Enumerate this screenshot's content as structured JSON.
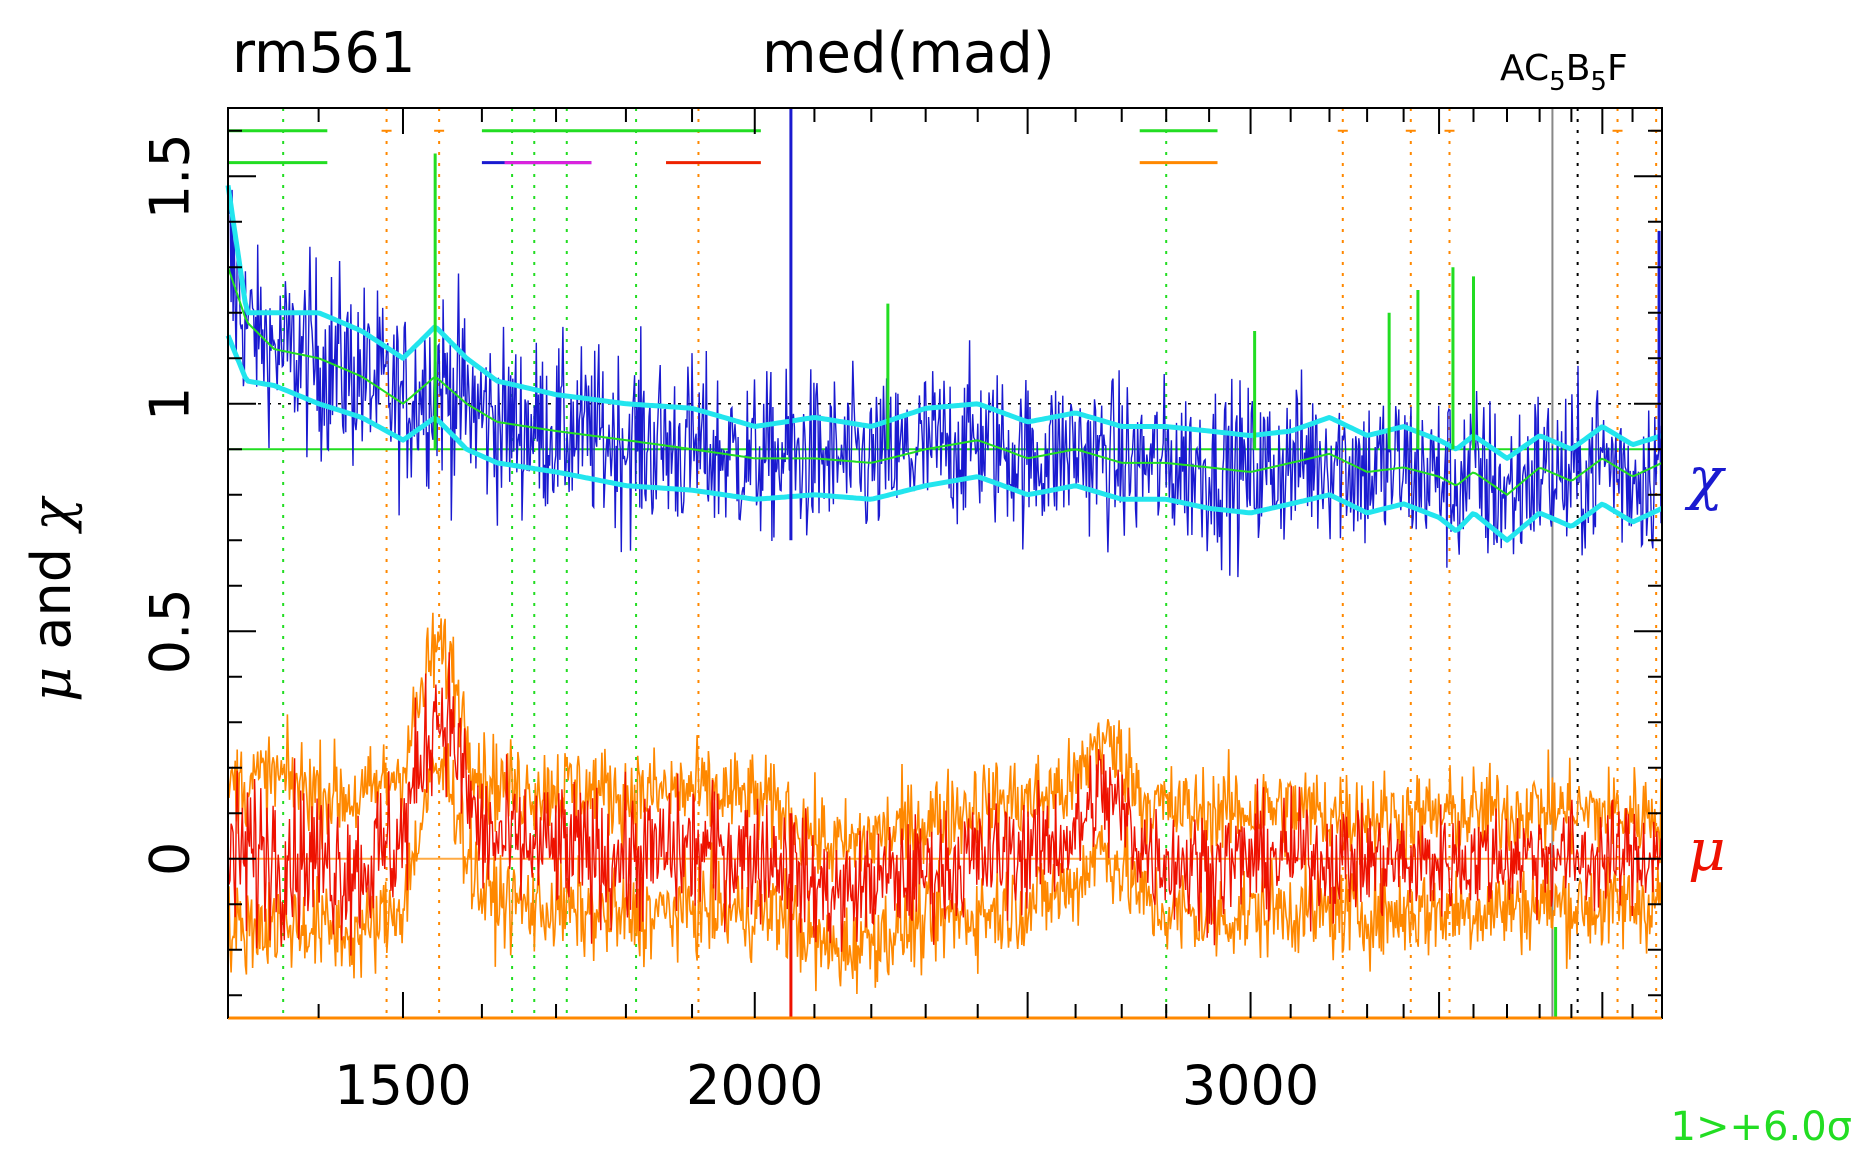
{
  "chart_data": {
    "type": "line",
    "title_left": "rm561",
    "title_center": "med(mad)",
    "annotation_top_right": {
      "base": "AC",
      "sub1": "5",
      "mid": "B",
      "sub2": "5",
      "end": "F"
    },
    "ylabel_parts": {
      "mu": "μ",
      "mid": " and ",
      "chi": "χ"
    },
    "label_chi": "χ",
    "label_mu": "μ",
    "note_bottom_right": "1>+6.0σ",
    "x_scale": "log",
    "xlim": [
      1300,
      4200
    ],
    "ylim": [
      -0.35,
      1.65
    ],
    "x_ticks": [
      {
        "value": 1500,
        "label": "1500"
      },
      {
        "value": 2000,
        "label": "2000"
      },
      {
        "value": 3000,
        "label": "3000"
      }
    ],
    "y_ticks": [
      {
        "value": 0,
        "label": "0"
      },
      {
        "value": 0.5,
        "label": "0.5"
      },
      {
        "value": 1,
        "label": "1"
      },
      {
        "value": 1.5,
        "label": "1.5"
      }
    ],
    "reference_lines": {
      "chi_green_horizontal": 0.9,
      "chi_dotted_one": 1.0,
      "mu_zero": 0.0
    },
    "series": [
      {
        "key": "chi_median_smooth",
        "x": [
          1300,
          1320,
          1350,
          1400,
          1450,
          1500,
          1540,
          1580,
          1620,
          1700,
          1800,
          1900,
          2000,
          2100,
          2200,
          2300,
          2400,
          2500,
          2600,
          2700,
          2800,
          2900,
          3000,
          3100,
          3200,
          3300,
          3400,
          3500,
          3550,
          3600,
          3700,
          3800,
          3900,
          4000,
          4100,
          4200
        ],
        "y": [
          1.3,
          1.18,
          1.12,
          1.1,
          1.06,
          1.0,
          1.06,
          1.0,
          0.96,
          0.94,
          0.92,
          0.9,
          0.88,
          0.88,
          0.87,
          0.9,
          0.92,
          0.88,
          0.9,
          0.87,
          0.87,
          0.86,
          0.85,
          0.87,
          0.89,
          0.85,
          0.86,
          0.84,
          0.82,
          0.85,
          0.8,
          0.86,
          0.83,
          0.88,
          0.84,
          0.87
        ]
      },
      {
        "key": "chi_band_upper",
        "x": [
          1300,
          1320,
          1350,
          1400,
          1450,
          1500,
          1540,
          1580,
          1620,
          1700,
          1800,
          1900,
          2000,
          2100,
          2200,
          2300,
          2400,
          2500,
          2600,
          2700,
          2800,
          2900,
          3000,
          3100,
          3200,
          3300,
          3400,
          3500,
          3550,
          3600,
          3700,
          3800,
          3900,
          4000,
          4100,
          4200
        ],
        "y": [
          1.48,
          1.2,
          1.2,
          1.2,
          1.16,
          1.1,
          1.17,
          1.1,
          1.05,
          1.02,
          1.0,
          0.99,
          0.95,
          0.97,
          0.95,
          0.99,
          1.0,
          0.96,
          0.98,
          0.95,
          0.95,
          0.94,
          0.93,
          0.94,
          0.97,
          0.93,
          0.95,
          0.92,
          0.9,
          0.93,
          0.88,
          0.93,
          0.9,
          0.95,
          0.91,
          0.93
        ]
      },
      {
        "key": "chi_band_lower",
        "x": [
          1300,
          1320,
          1350,
          1400,
          1450,
          1500,
          1540,
          1580,
          1620,
          1700,
          1800,
          1900,
          2000,
          2100,
          2200,
          2300,
          2400,
          2500,
          2600,
          2700,
          2800,
          2900,
          3000,
          3100,
          3200,
          3300,
          3400,
          3500,
          3550,
          3600,
          3700,
          3800,
          3900,
          4000,
          4100,
          4200
        ],
        "y": [
          1.15,
          1.05,
          1.04,
          1.0,
          0.97,
          0.92,
          0.97,
          0.9,
          0.87,
          0.85,
          0.82,
          0.81,
          0.79,
          0.8,
          0.79,
          0.82,
          0.84,
          0.8,
          0.82,
          0.79,
          0.79,
          0.77,
          0.76,
          0.78,
          0.8,
          0.76,
          0.78,
          0.75,
          0.72,
          0.76,
          0.7,
          0.76,
          0.73,
          0.78,
          0.74,
          0.77
        ]
      },
      {
        "key": "mu_median",
        "x": [
          1300,
          1350,
          1400,
          1450,
          1500,
          1520,
          1540,
          1560,
          1580,
          1600,
          1650,
          1700,
          1800,
          1900,
          2000,
          2050,
          2100,
          2150,
          2200,
          2300,
          2400,
          2500,
          2600,
          2650,
          2700,
          2750,
          2800,
          2900,
          3000,
          3100,
          3200,
          3400,
          3600,
          3800,
          4000,
          4200
        ],
        "y": [
          0.0,
          0.02,
          0.0,
          -0.02,
          0.05,
          0.2,
          0.33,
          0.3,
          0.15,
          0.05,
          0.03,
          0.02,
          0.0,
          0.02,
          0.01,
          0.0,
          -0.06,
          -0.08,
          -0.05,
          -0.03,
          0.0,
          0.02,
          0.05,
          0.15,
          0.1,
          0.02,
          0.0,
          -0.02,
          0.0,
          0.01,
          0.0,
          -0.01,
          0.0,
          0.01,
          0.0,
          0.01
        ]
      },
      {
        "key": "mu_band_upper",
        "x": [
          1300,
          1350,
          1400,
          1450,
          1500,
          1520,
          1540,
          1560,
          1580,
          1600,
          1650,
          1700,
          1800,
          1900,
          2000,
          2050,
          2100,
          2150,
          2200,
          2300,
          2400,
          2500,
          2600,
          2650,
          2700,
          2750,
          2800,
          2900,
          3000,
          3100,
          3200,
          3400,
          3600,
          3800,
          4000,
          4200
        ],
        "y": [
          0.16,
          0.18,
          0.15,
          0.13,
          0.2,
          0.34,
          0.47,
          0.43,
          0.28,
          0.18,
          0.15,
          0.16,
          0.14,
          0.15,
          0.13,
          0.1,
          0.05,
          0.02,
          0.05,
          0.08,
          0.12,
          0.13,
          0.16,
          0.27,
          0.22,
          0.13,
          0.11,
          0.1,
          0.11,
          0.11,
          0.1,
          0.09,
          0.1,
          0.11,
          0.1,
          0.1
        ]
      },
      {
        "key": "mu_band_lower",
        "x": [
          1300,
          1350,
          1400,
          1450,
          1500,
          1520,
          1540,
          1560,
          1580,
          1600,
          1650,
          1700,
          1800,
          1900,
          2000,
          2050,
          2100,
          2150,
          2200,
          2300,
          2400,
          2500,
          2600,
          2650,
          2700,
          2750,
          2800,
          2900,
          3000,
          3100,
          3200,
          3400,
          3600,
          3800,
          4000,
          4200
        ],
        "y": [
          -0.16,
          -0.14,
          -0.15,
          -0.17,
          -0.1,
          0.06,
          0.2,
          0.17,
          0.02,
          -0.08,
          -0.1,
          -0.11,
          -0.13,
          -0.11,
          -0.12,
          -0.12,
          -0.19,
          -0.2,
          -0.17,
          -0.14,
          -0.12,
          -0.1,
          -0.06,
          0.03,
          -0.02,
          -0.09,
          -0.12,
          -0.13,
          -0.12,
          -0.11,
          -0.12,
          -0.12,
          -0.11,
          -0.1,
          -0.11,
          -0.09
        ]
      }
    ],
    "spikes": [
      {
        "x": 1540,
        "y0": 0.9,
        "y1": 1.55,
        "color": "#22dd22"
      },
      {
        "x": 2060,
        "y0": 0.7,
        "y1": 1.65,
        "color": "#1a1ad0"
      },
      {
        "x": 2230,
        "y0": 0.9,
        "y1": 1.22,
        "color": "#22dd22"
      },
      {
        "x": 3010,
        "y0": 0.9,
        "y1": 1.16,
        "color": "#22dd22"
      },
      {
        "x": 3360,
        "y0": 0.9,
        "y1": 1.2,
        "color": "#22dd22"
      },
      {
        "x": 3440,
        "y0": 0.9,
        "y1": 1.25,
        "color": "#22dd22"
      },
      {
        "x": 3540,
        "y0": 0.9,
        "y1": 1.3,
        "color": "#22dd22"
      },
      {
        "x": 3600,
        "y0": 0.9,
        "y1": 1.28,
        "color": "#22dd22"
      },
      {
        "x": 4190,
        "y0": 0.9,
        "y1": 1.38,
        "color": "#1a1ad0"
      }
    ],
    "vertical_markers": [
      {
        "x": 1360,
        "color": "#22dd22",
        "style": "dotted"
      },
      {
        "x": 1480,
        "color": "#ff8800",
        "style": "dotted"
      },
      {
        "x": 1545,
        "color": "#ff8800",
        "style": "dotted"
      },
      {
        "x": 1640,
        "color": "#22dd22",
        "style": "dotted"
      },
      {
        "x": 1670,
        "color": "#22dd22",
        "style": "dotted"
      },
      {
        "x": 1715,
        "color": "#22dd22",
        "style": "dotted"
      },
      {
        "x": 1815,
        "color": "#22dd22",
        "style": "dotted"
      },
      {
        "x": 1910,
        "color": "#ff8800",
        "style": "dotted"
      },
      {
        "x": 2800,
        "color": "#22dd22",
        "style": "dotted"
      },
      {
        "x": 3235,
        "color": "#ff8800",
        "style": "dotted"
      },
      {
        "x": 3420,
        "color": "#ff8800",
        "style": "dotted"
      },
      {
        "x": 3530,
        "color": "#ff8800",
        "style": "dotted"
      },
      {
        "x": 3840,
        "color": "#888888",
        "style": "solid"
      },
      {
        "x": 3920,
        "color": "#000000",
        "style": "dotted"
      },
      {
        "x": 4050,
        "color": "#ff8800",
        "style": "dotted"
      },
      {
        "x": 4180,
        "color": "#ff8800",
        "style": "dotted"
      }
    ],
    "segments": [
      {
        "x0": 1300,
        "x1": 1410,
        "y": 1.6,
        "color": "#22dd22"
      },
      {
        "x0": 1300,
        "x1": 1410,
        "y": 1.53,
        "color": "#22dd22"
      },
      {
        "x0": 1600,
        "x1": 2010,
        "y": 1.6,
        "color": "#22dd22"
      },
      {
        "x0": 1600,
        "x1": 1630,
        "y": 1.53,
        "color": "#1a1ad0"
      },
      {
        "x0": 1630,
        "x1": 1750,
        "y": 1.53,
        "color": "#1a1ad0"
      },
      {
        "x0": 1630,
        "x1": 1750,
        "y": 1.53,
        "color": "#dd22dd"
      },
      {
        "x0": 1860,
        "x1": 2010,
        "y": 1.53,
        "color": "#ee2200"
      },
      {
        "x0": 2740,
        "x1": 2920,
        "y": 1.6,
        "color": "#22dd22"
      },
      {
        "x0": 2740,
        "x1": 2920,
        "y": 1.53,
        "color": "#ff8800"
      }
    ],
    "colors": {
      "chi_raw": "#1a1ad0",
      "chi_band": "#22e5ee",
      "chi_median": "#22dd22",
      "mu_raw": "#ee1100",
      "mu_band": "#ff8800",
      "mu_zero_line": "#ffaa44",
      "note": "#22dd22",
      "label_chi": "#1a1ad0",
      "label_mu": "#ee1100"
    }
  }
}
